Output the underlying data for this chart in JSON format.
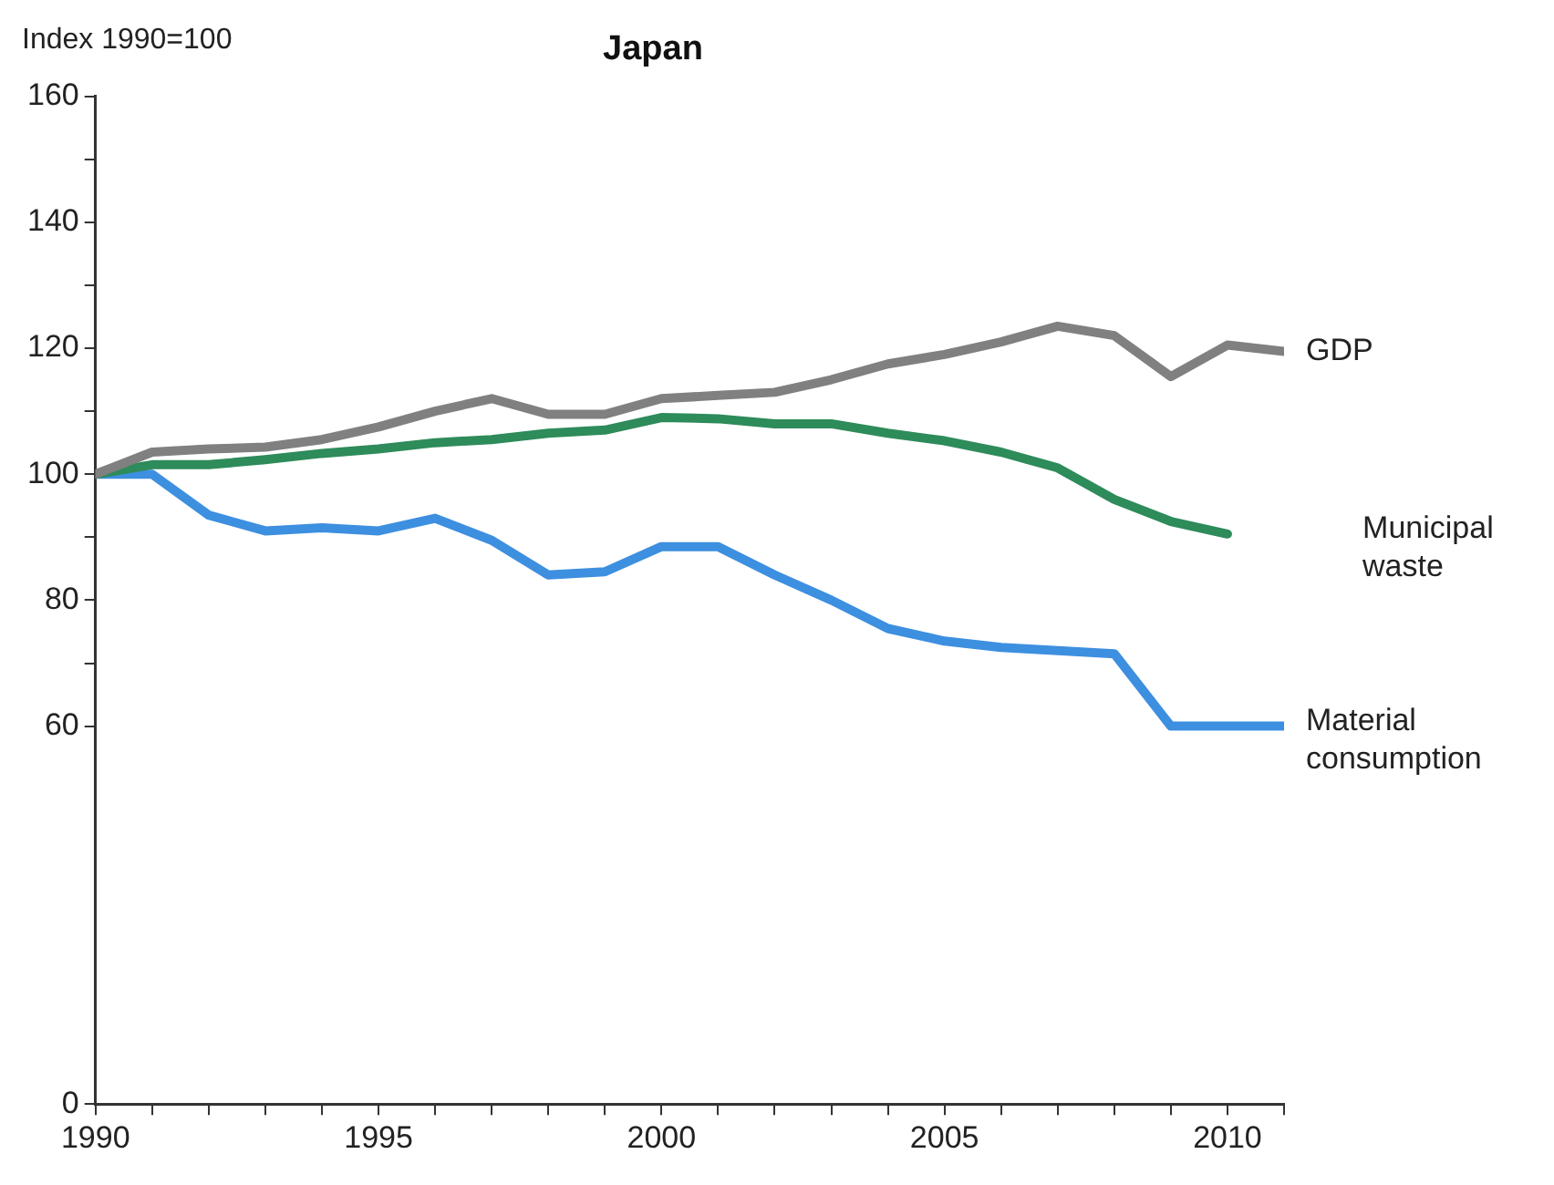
{
  "chart_data": {
    "type": "line",
    "title": "Japan",
    "ylabel": "Index 1990=100",
    "x": [
      1990,
      1991,
      1992,
      1993,
      1994,
      1995,
      1996,
      1997,
      1998,
      1999,
      2000,
      2001,
      2002,
      2003,
      2004,
      2005,
      2006,
      2007,
      2008,
      2009,
      2010,
      2011
    ],
    "series": [
      {
        "name": "GDP",
        "color": "#808080",
        "values": [
          100,
          103.5,
          104,
          104.3,
          105.5,
          107.5,
          110,
          112,
          109.5,
          109.5,
          112,
          112.5,
          113,
          115,
          117.5,
          119,
          121,
          123.5,
          122,
          115.5,
          120.5,
          119.5
        ]
      },
      {
        "name": "Municipal waste",
        "color": "#2e8b5a",
        "values": [
          100,
          101.5,
          101.5,
          102.3,
          103.3,
          104,
          105,
          105.5,
          106.5,
          107,
          109,
          108.8,
          108,
          108,
          106.5,
          105.3,
          103.5,
          101,
          96,
          92.5,
          90.5,
          null
        ]
      },
      {
        "name": "Material consumption",
        "color": "#3d8fe0",
        "values": [
          100,
          100,
          93.5,
          91,
          91.5,
          91,
          93,
          89.5,
          84,
          84.5,
          88.5,
          88.5,
          84,
          80,
          75.5,
          73.5,
          72.5,
          72,
          71.5,
          60,
          60,
          60
        ]
      }
    ],
    "xlim": [
      1990,
      2011
    ],
    "xticks": [
      1990,
      {
        "value": 1991,
        "label": null
      },
      {
        "value": 1992,
        "label": null
      },
      {
        "value": 1993,
        "label": null
      },
      {
        "value": 1994,
        "label": null
      },
      1995,
      {
        "value": 1996,
        "label": null
      },
      {
        "value": 1997,
        "label": null
      },
      {
        "value": 1998,
        "label": null
      },
      {
        "value": 1999,
        "label": null
      },
      2000,
      {
        "value": 2001,
        "label": null
      },
      {
        "value": 2002,
        "label": null
      },
      {
        "value": 2003,
        "label": null
      },
      {
        "value": 2004,
        "label": null
      },
      2005,
      {
        "value": 2006,
        "label": null
      },
      {
        "value": 2007,
        "label": null
      },
      {
        "value": 2008,
        "label": null
      },
      {
        "value": 2009,
        "label": null
      },
      2010,
      {
        "value": 2011,
        "label": null
      }
    ],
    "ylim": [
      0,
      160
    ],
    "yticks": [
      0,
      60,
      {
        "value": 70,
        "label": null
      },
      80,
      {
        "value": 90,
        "label": null
      },
      100,
      {
        "value": 110,
        "label": null
      },
      120,
      {
        "value": 130,
        "label": null
      },
      140,
      {
        "value": 150,
        "label": null
      },
      160
    ],
    "grid": false,
    "legend": false,
    "marker": "none",
    "line_style": "solid"
  }
}
